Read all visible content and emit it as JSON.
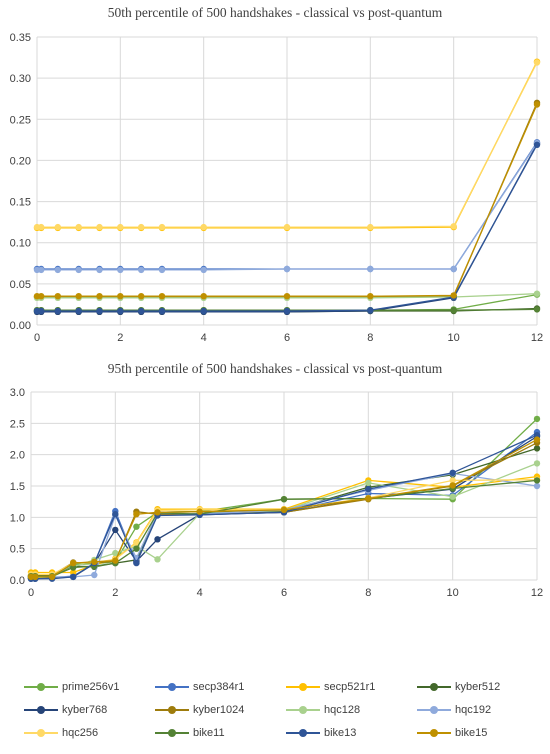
{
  "series_names": [
    "prime256v1",
    "secp384r1",
    "secp521r1",
    "kyber512",
    "kyber768",
    "kyber1024",
    "hqc128",
    "hqc192",
    "hqc256",
    "bike11",
    "bike13",
    "bike15"
  ],
  "colors": [
    "#70ad47",
    "#4472c4",
    "#ffc000",
    "#43682b",
    "#264478",
    "#9e7c0c",
    "#a9d18e",
    "#8faadc",
    "#ffd966",
    "#548235",
    "#2f5597",
    "#bf9000"
  ],
  "chart_data": [
    {
      "type": "line",
      "title": "50th percentile of 500 handshakes - classical vs post-quantum",
      "xlim": [
        0,
        12
      ],
      "ylim": [
        0,
        0.35
      ],
      "xticks": [
        "0",
        "2",
        "4",
        "6",
        "8",
        "10",
        "12"
      ],
      "yticks": [
        "0.00",
        "0.05",
        "0.10",
        "0.15",
        "0.20",
        "0.25",
        "0.30",
        "0.35"
      ],
      "grid": true,
      "x": [
        0,
        0.1,
        0.5,
        1,
        1.5,
        2,
        2.5,
        3,
        4,
        6,
        8,
        10,
        12
      ],
      "series": [
        {
          "name": "prime256v1",
          "values": [
            0.018,
            0.018,
            0.018,
            0.018,
            0.018,
            0.018,
            0.018,
            0.018,
            0.018,
            0.018,
            0.018,
            0.019,
            0.037
          ]
        },
        {
          "name": "secp384r1",
          "values": [
            0.068,
            0.068,
            0.068,
            0.068,
            0.068,
            0.068,
            0.068,
            0.068,
            0.068,
            0.068,
            0.068,
            0.068,
            0.222
          ]
        },
        {
          "name": "secp521r1",
          "values": [
            0.118,
            0.118,
            0.118,
            0.118,
            0.118,
            0.118,
            0.118,
            0.118,
            0.118,
            0.118,
            0.118,
            0.119,
            0.32
          ]
        },
        {
          "name": "kyber512",
          "values": [
            0.016,
            0.016,
            0.016,
            0.016,
            0.016,
            0.016,
            0.016,
            0.016,
            0.016,
            0.016,
            0.017,
            0.017,
            0.02
          ]
        },
        {
          "name": "kyber768",
          "values": [
            0.016,
            0.016,
            0.016,
            0.016,
            0.016,
            0.016,
            0.016,
            0.016,
            0.016,
            0.016,
            0.017,
            0.033,
            0.22
          ]
        },
        {
          "name": "kyber1024",
          "values": [
            0.034,
            0.034,
            0.034,
            0.034,
            0.034,
            0.034,
            0.034,
            0.034,
            0.034,
            0.034,
            0.034,
            0.035,
            0.27
          ]
        },
        {
          "name": "hqc128",
          "values": [
            0.033,
            0.033,
            0.033,
            0.033,
            0.033,
            0.033,
            0.033,
            0.033,
            0.033,
            0.033,
            0.033,
            0.034,
            0.038
          ]
        },
        {
          "name": "hqc192",
          "values": [
            0.067,
            0.067,
            0.067,
            0.067,
            0.067,
            0.067,
            0.067,
            0.067,
            0.067,
            0.068,
            0.068,
            0.068,
            0.221
          ]
        },
        {
          "name": "hqc256",
          "values": [
            0.119,
            0.119,
            0.119,
            0.119,
            0.119,
            0.119,
            0.119,
            0.119,
            0.119,
            0.119,
            0.119,
            0.12,
            0.319
          ]
        },
        {
          "name": "bike11",
          "values": [
            0.018,
            0.018,
            0.018,
            0.018,
            0.018,
            0.018,
            0.018,
            0.018,
            0.018,
            0.018,
            0.018,
            0.018,
            0.019
          ]
        },
        {
          "name": "bike13",
          "values": [
            0.017,
            0.017,
            0.017,
            0.017,
            0.017,
            0.017,
            0.017,
            0.017,
            0.017,
            0.017,
            0.018,
            0.034,
            0.219
          ]
        },
        {
          "name": "bike15",
          "values": [
            0.035,
            0.035,
            0.035,
            0.035,
            0.035,
            0.035,
            0.035,
            0.035,
            0.035,
            0.035,
            0.035,
            0.036,
            0.268
          ]
        }
      ]
    },
    {
      "type": "line",
      "title": "95th percentile of 500 handshakes - classical vs post-quantum",
      "xlim": [
        0,
        12
      ],
      "ylim": [
        0,
        3.0
      ],
      "xticks": [
        "0",
        "2",
        "4",
        "6",
        "8",
        "10",
        "12"
      ],
      "yticks": [
        "0.0",
        "0.5",
        "1.0",
        "1.5",
        "2.0",
        "2.5",
        "3.0"
      ],
      "grid": true,
      "x": [
        0,
        0.1,
        0.5,
        1,
        1.5,
        2,
        2.5,
        3,
        4,
        6,
        8,
        10,
        12
      ],
      "series": [
        {
          "name": "prime256v1",
          "values": [
            0.06,
            0.06,
            0.07,
            0.25,
            0.26,
            0.29,
            0.85,
            1.08,
            1.09,
            1.29,
            1.3,
            1.29,
            2.57
          ]
        },
        {
          "name": "secp384r1",
          "values": [
            0.03,
            0.03,
            0.04,
            0.06,
            0.26,
            1.1,
            0.28,
            1.05,
            1.06,
            1.08,
            1.38,
            1.35,
            2.36
          ]
        },
        {
          "name": "secp521r1",
          "values": [
            0.12,
            0.12,
            0.12,
            0.12,
            0.24,
            0.34,
            0.6,
            1.13,
            1.13,
            1.13,
            1.59,
            1.48,
            1.65
          ]
        },
        {
          "name": "kyber512",
          "values": [
            0.04,
            0.04,
            0.05,
            0.22,
            0.21,
            0.27,
            0.32,
            1.08,
            1.09,
            1.09,
            1.48,
            1.68,
            2.1
          ]
        },
        {
          "name": "kyber768",
          "values": [
            0.02,
            0.02,
            0.03,
            0.05,
            0.26,
            0.8,
            0.3,
            0.65,
            1.04,
            1.08,
            1.3,
            1.45,
            2.29
          ]
        },
        {
          "name": "kyber1024",
          "values": [
            0.07,
            0.07,
            0.08,
            0.28,
            0.27,
            0.3,
            1.09,
            1.05,
            1.05,
            1.08,
            1.29,
            1.5,
            2.19
          ]
        },
        {
          "name": "hqc128",
          "values": [
            0.04,
            0.04,
            0.05,
            0.21,
            0.32,
            0.43,
            0.54,
            0.33,
            1.06,
            1.11,
            1.55,
            1.33,
            1.86
          ]
        },
        {
          "name": "hqc192",
          "values": [
            0.05,
            0.05,
            0.05,
            0.05,
            0.08,
            1.03,
            0.35,
            1.07,
            1.05,
            1.12,
            1.43,
            1.7,
            1.5
          ]
        },
        {
          "name": "hqc256",
          "values": [
            0.09,
            0.09,
            0.09,
            0.27,
            0.28,
            0.33,
            0.59,
            1.11,
            1.12,
            1.12,
            1.31,
            1.59,
            1.6
          ]
        },
        {
          "name": "bike11",
          "values": [
            0.06,
            0.06,
            0.06,
            0.2,
            0.22,
            0.27,
            0.5,
            1.07,
            1.05,
            1.29,
            1.3,
            1.46,
            1.59
          ]
        },
        {
          "name": "bike13",
          "values": [
            0.02,
            0.02,
            0.02,
            0.05,
            0.27,
            1.05,
            0.27,
            1.03,
            1.04,
            1.08,
            1.45,
            1.71,
            2.31
          ]
        },
        {
          "name": "bike15",
          "values": [
            0.05,
            0.05,
            0.05,
            0.27,
            0.29,
            0.31,
            1.05,
            1.08,
            1.09,
            1.12,
            1.3,
            1.51,
            2.24
          ]
        }
      ]
    }
  ]
}
